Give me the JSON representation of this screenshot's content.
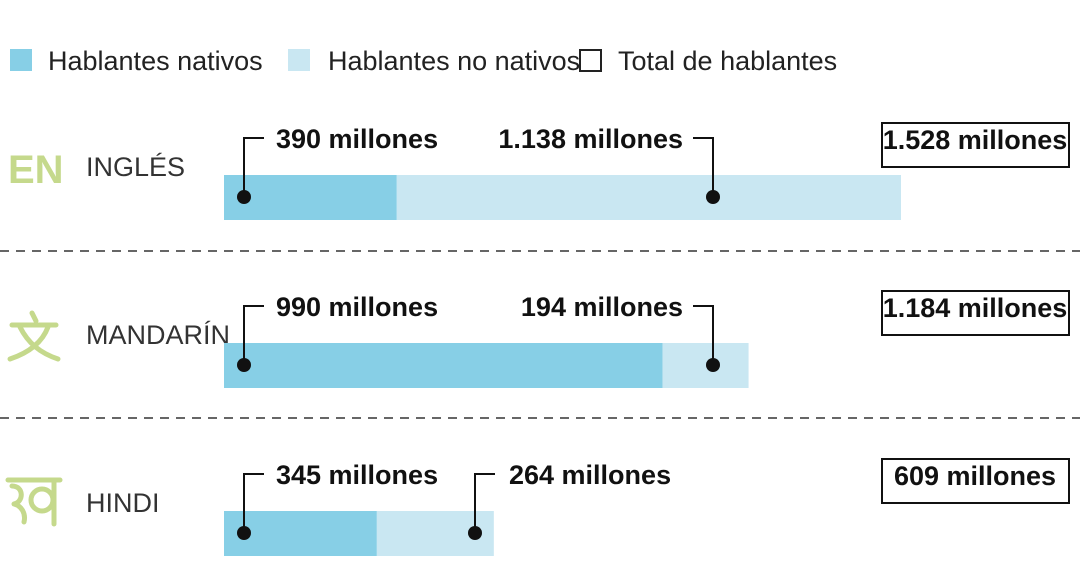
{
  "legend": {
    "native": "Hablantes nativos",
    "non_native": "Hablantes no nativos",
    "total": "Total de hablantes"
  },
  "colors": {
    "native": "#87cfe6",
    "non_native": "#c9e7f2",
    "icon": "#c5d98c",
    "divider": "#666666"
  },
  "chart_data": {
    "type": "bar",
    "stacked": true,
    "orientation": "horizontal",
    "categories": [
      "INGLÉS",
      "MANDARÍN",
      "HINDI"
    ],
    "codes": [
      "EN",
      "",
      ""
    ],
    "icons": [
      "",
      "wen-character-icon",
      "kha-character-icon"
    ],
    "series": [
      {
        "name": "Hablantes nativos",
        "values": [
          390,
          990,
          345
        ],
        "labels": [
          "390 millones",
          "990 millones",
          "345 millones"
        ]
      },
      {
        "name": "Hablantes no nativos",
        "values": [
          1138,
          194,
          264
        ],
        "labels": [
          "1.138 millones",
          "194 millones",
          "264 millones"
        ]
      }
    ],
    "totals": [
      1528,
      1184,
      609
    ],
    "total_labels": [
      "1.528 millones",
      "1.184 millones",
      "609 millones"
    ],
    "unit": "millones",
    "xlim": [
      0,
      1528
    ],
    "grid": false,
    "legend_position": "top-left"
  }
}
